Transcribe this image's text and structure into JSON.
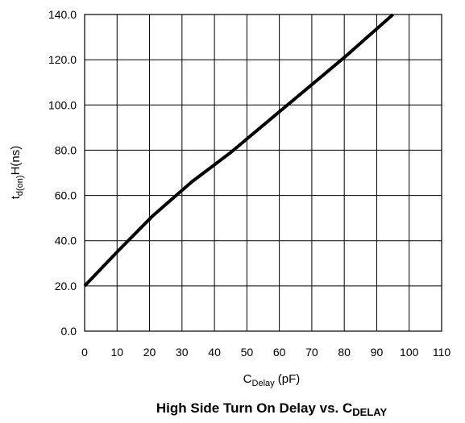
{
  "chart_data": {
    "type": "line",
    "title": {
      "main": "High Side Turn On Delay vs. C",
      "sub": "DELAY"
    },
    "xlabel": {
      "main": "C",
      "sub": "Delay",
      "rest": " (pF)"
    },
    "ylabel": {
      "main": "t",
      "sub": "d(on)",
      "rest": "H(ns)"
    },
    "xlim": [
      0,
      110
    ],
    "ylim": [
      0,
      140
    ],
    "x_ticks": [
      "0",
      "10",
      "20",
      "30",
      "40",
      "50",
      "60",
      "70",
      "80",
      "90",
      "100",
      "110"
    ],
    "y_ticks": [
      "0.0",
      "20.0",
      "40.0",
      "60.0",
      "80.0",
      "100.0",
      "120.0",
      "140.0"
    ],
    "grid": true,
    "series": [
      {
        "x": [
          0,
          10,
          21,
          33,
          45,
          60,
          80,
          95
        ],
        "y": [
          20,
          35,
          51,
          66,
          79,
          97,
          121,
          140
        ],
        "color": "#000000"
      }
    ]
  }
}
